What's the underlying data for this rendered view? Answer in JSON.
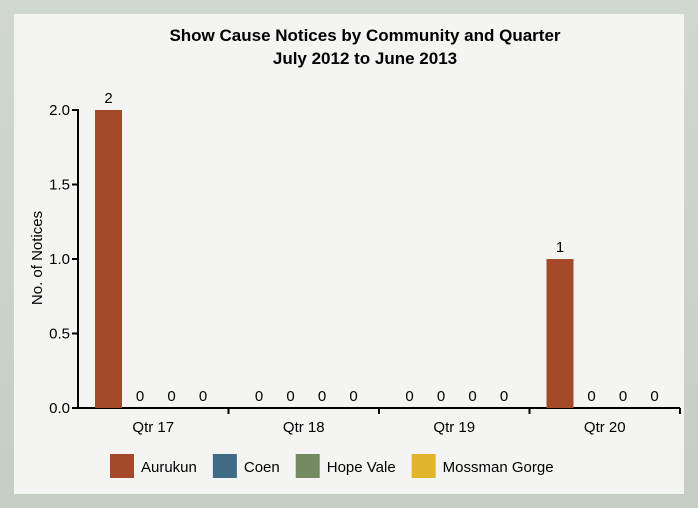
{
  "chart_data": {
    "type": "bar",
    "title": "Show Cause Notices by Community and Quarter",
    "subtitle": "July 2012 to June 2013",
    "xlabel": "",
    "ylabel": "No. of Notices",
    "ylim": [
      0,
      2.0
    ],
    "yticks": [
      "0.0",
      "0.5",
      "1.0",
      "1.5",
      "2.0"
    ],
    "categories": [
      "Qtr 17",
      "Qtr 18",
      "Qtr 19",
      "Qtr 20"
    ],
    "series": [
      {
        "name": "Aurukun",
        "color": "#a44a2a",
        "values": [
          2,
          0,
          0,
          1
        ]
      },
      {
        "name": "Coen",
        "color": "#3f6b86",
        "values": [
          0,
          0,
          0,
          0
        ]
      },
      {
        "name": "Hope Vale",
        "color": "#758a63",
        "values": [
          0,
          0,
          0,
          0
        ]
      },
      {
        "name": "Mossman Gorge",
        "color": "#e1b52c",
        "values": [
          0,
          0,
          0,
          0
        ]
      }
    ],
    "legend_position": "bottom",
    "grid": false
  }
}
